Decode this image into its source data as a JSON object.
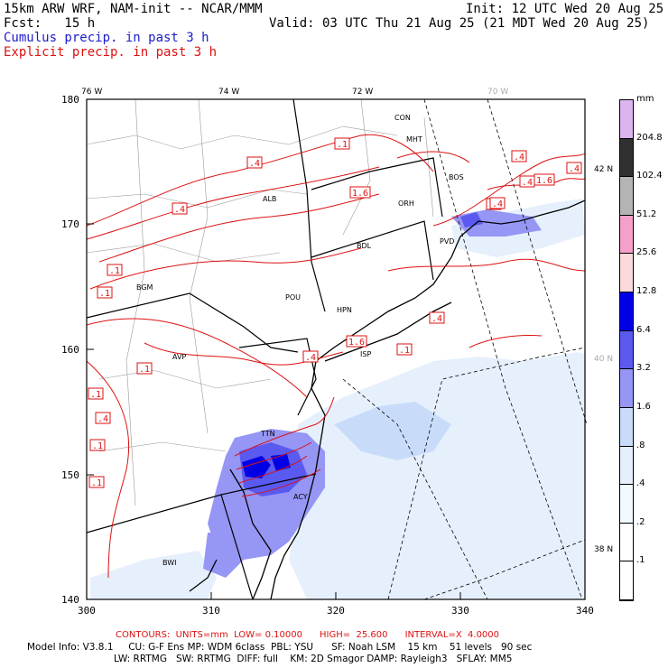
{
  "header": {
    "line1_left": "15km ARW WRF, NAM-init -- NCAR/MMM",
    "line1_right": "Init: 12 UTC Wed 20 Aug 25",
    "line2_left": "Fcst:   15 h",
    "line2_right": "Valid: 03 UTC Thu 21 Aug 25 (21 MDT Wed 20 Aug 25)",
    "cumulus_label": "Cumulus precip. in past 3 h",
    "explicit_label": "Explicit precip. in past 3 h"
  },
  "axes": {
    "x_ticks": [
      "300",
      "310",
      "320",
      "330",
      "340"
    ],
    "y_ticks": [
      "140",
      "150",
      "160",
      "170",
      "180"
    ],
    "lon_labels": [
      "76 W",
      "74 W",
      "72 W",
      "70 W"
    ],
    "lat_labels": [
      "42 N",
      "40 N",
      "38 N"
    ]
  },
  "colorbar": {
    "unit": "mm",
    "labels": [
      "204.8",
      "102.4",
      "51.2",
      "25.6",
      "12.8",
      "6.4",
      "3.2",
      "1.6",
      ".8",
      ".4",
      ".2",
      ".1"
    ],
    "colors": [
      "#dcb4f0",
      "#303030",
      "#b4b4b4",
      "#f5a0c8",
      "#fadadc",
      "#0000e6",
      "#5a5af0",
      "#9696f5",
      "#c8dcfa",
      "#e6f0fc",
      "#f0faff",
      "#ffffff",
      "#ffffff"
    ]
  },
  "stations": [
    "CON",
    "MHT",
    "BOS",
    "ORH",
    "ALB",
    "BDL",
    "PVD",
    "BGM",
    "POU",
    "HPN",
    "AVP",
    "ISP",
    "TTN",
    "ACY",
    "BWI"
  ],
  "contour_labels": [
    ".1",
    ".4",
    "1.6",
    ".4",
    ".4",
    ".4",
    ".4",
    ".1",
    ".1",
    ".4",
    ".1",
    ".4",
    ".1",
    ".1",
    "1.6",
    ".1",
    ".4",
    ".1",
    ".4",
    "1.6",
    ".4"
  ],
  "footer": {
    "contours_line": "CONTOURS:  UNITS=mm  LOW= 0.10000      HIGH=  25.600      INTERVAL=X  4.0000",
    "model_line1": "Model Info: V3.8.1     CU: G-F Ens MP: WDM 6class  PBL: YSU      SF: Noah LSM    15 km    51 levels   90 sec",
    "model_line2": "LW: RRTMG   SW: RRTMG  DIFF: full    KM: 2D Smagor DAMP: Rayleigh3   SFLAY: MM5"
  }
}
